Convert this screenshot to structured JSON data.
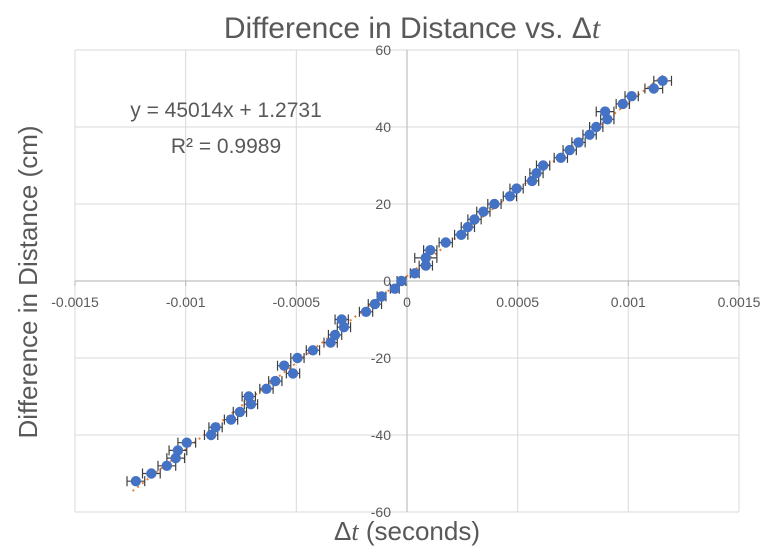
{
  "chart_data": {
    "type": "scatter",
    "title": "Difference in Distance vs. Δt",
    "title_prefix": "Difference in Distance vs. Δ",
    "title_italic": "t",
    "xlabel": "Δt (seconds)",
    "xlabel_prefix": "Δ",
    "xlabel_italic": "t",
    "xlabel_suffix": " (seconds)",
    "ylabel": "Difference in Distance (cm)",
    "xlim": [
      -0.0015,
      0.0015
    ],
    "ylim": [
      -60,
      60
    ],
    "x_ticks": [
      -0.0015,
      -0.001,
      -0.0005,
      0,
      0.0005,
      0.001,
      0.0015
    ],
    "x_tick_labels": [
      "-0.0015",
      "-0.001",
      "-0.0005",
      "0",
      "0.0005",
      "0.001",
      "0.0015"
    ],
    "y_ticks": [
      -60,
      -40,
      -20,
      0,
      20,
      40,
      60
    ],
    "y_tick_labels": [
      "-60",
      "-40",
      "-20",
      "0",
      "20",
      "40",
      "60"
    ],
    "grid": true,
    "marker_color": "#4472c4",
    "trendline_color": "#ed7d31",
    "error_bar_color": "#404040",
    "trendline": {
      "slope": 45014,
      "intercept": 1.2731,
      "r_squared": 0.9989,
      "equation_label": "y = 45014x + 1.2731",
      "r2_label": "R² = 0.9989"
    },
    "points": [
      {
        "x": -0.001225,
        "y": -52,
        "xerr": 4e-05
      },
      {
        "x": -0.001155,
        "y": -50,
        "xerr": 4e-05
      },
      {
        "x": -0.001085,
        "y": -48,
        "xerr": 4e-05
      },
      {
        "x": -0.001045,
        "y": -46,
        "xerr": 4e-05
      },
      {
        "x": -0.001035,
        "y": -44,
        "xerr": 4e-05
      },
      {
        "x": -0.000995,
        "y": -42,
        "xerr": 4e-05
      },
      {
        "x": -0.000885,
        "y": -40,
        "xerr": 3e-05
      },
      {
        "x": -0.000865,
        "y": -38,
        "xerr": 3e-05
      },
      {
        "x": -0.000795,
        "y": -36,
        "xerr": 3e-05
      },
      {
        "x": -0.000755,
        "y": -34,
        "xerr": 3e-05
      },
      {
        "x": -0.000705,
        "y": -32,
        "xerr": 3e-05
      },
      {
        "x": -0.000715,
        "y": -30,
        "xerr": 3e-05
      },
      {
        "x": -0.000635,
        "y": -28,
        "xerr": 3e-05
      },
      {
        "x": -0.000595,
        "y": -26,
        "xerr": 3e-05
      },
      {
        "x": -0.000515,
        "y": -24,
        "xerr": 3e-05
      },
      {
        "x": -0.000555,
        "y": -22,
        "xerr": 3e-05
      },
      {
        "x": -0.000495,
        "y": -20,
        "xerr": 3e-05
      },
      {
        "x": -0.000425,
        "y": -18,
        "xerr": 3e-05
      },
      {
        "x": -0.000345,
        "y": -16,
        "xerr": 3e-05
      },
      {
        "x": -0.000325,
        "y": -14,
        "xerr": 3e-05
      },
      {
        "x": -0.000285,
        "y": -12,
        "xerr": 3e-05
      },
      {
        "x": -0.000295,
        "y": -10,
        "xerr": 3e-05
      },
      {
        "x": -0.000185,
        "y": -8,
        "xerr": 3e-05
      },
      {
        "x": -0.000145,
        "y": -6,
        "xerr": 3e-05
      },
      {
        "x": -0.000115,
        "y": -4,
        "xerr": 2e-05
      },
      {
        "x": -5.5e-05,
        "y": -2,
        "xerr": 2e-05
      },
      {
        "x": -2.5e-05,
        "y": 0,
        "xerr": 2e-05
      },
      {
        "x": 3.5e-05,
        "y": 2,
        "xerr": 2e-05
      },
      {
        "x": 8.5e-05,
        "y": 4,
        "xerr": 3e-05
      },
      {
        "x": 8.5e-05,
        "y": 6,
        "xerr": 5e-05
      },
      {
        "x": 0.000105,
        "y": 8,
        "xerr": 3e-05
      },
      {
        "x": 0.000175,
        "y": 10,
        "xerr": 3e-05
      },
      {
        "x": 0.000245,
        "y": 12,
        "xerr": 3e-05
      },
      {
        "x": 0.000275,
        "y": 14,
        "xerr": 3e-05
      },
      {
        "x": 0.000305,
        "y": 16,
        "xerr": 3e-05
      },
      {
        "x": 0.000345,
        "y": 18,
        "xerr": 3e-05
      },
      {
        "x": 0.000395,
        "y": 20,
        "xerr": 3e-05
      },
      {
        "x": 0.000465,
        "y": 22,
        "xerr": 3e-05
      },
      {
        "x": 0.000495,
        "y": 24,
        "xerr": 3e-05
      },
      {
        "x": 0.000565,
        "y": 26,
        "xerr": 3e-05
      },
      {
        "x": 0.000585,
        "y": 28,
        "xerr": 3e-05
      },
      {
        "x": 0.000615,
        "y": 30,
        "xerr": 3e-05
      },
      {
        "x": 0.000695,
        "y": 32,
        "xerr": 3e-05
      },
      {
        "x": 0.000735,
        "y": 34,
        "xerr": 3e-05
      },
      {
        "x": 0.000775,
        "y": 36,
        "xerr": 3e-05
      },
      {
        "x": 0.000825,
        "y": 38,
        "xerr": 3e-05
      },
      {
        "x": 0.000855,
        "y": 40,
        "xerr": 3e-05
      },
      {
        "x": 0.000905,
        "y": 42,
        "xerr": 3e-05
      },
      {
        "x": 0.000895,
        "y": 44,
        "xerr": 4e-05
      },
      {
        "x": 0.000975,
        "y": 46,
        "xerr": 3e-05
      },
      {
        "x": 0.001015,
        "y": 48,
        "xerr": 3e-05
      },
      {
        "x": 0.001115,
        "y": 50,
        "xerr": 4e-05
      },
      {
        "x": 0.001155,
        "y": 52,
        "xerr": 4e-05
      }
    ]
  }
}
